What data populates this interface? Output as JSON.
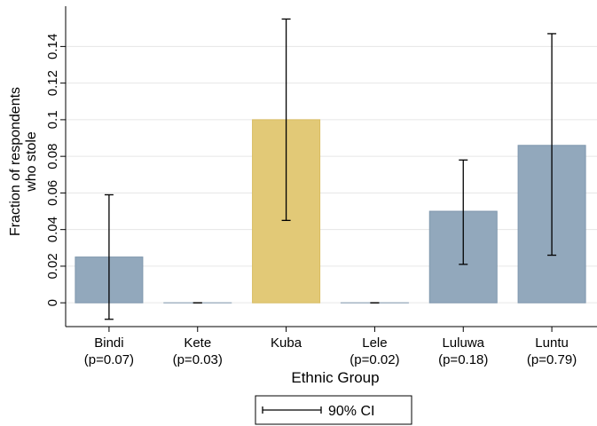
{
  "chart_data": {
    "type": "bar",
    "categories": [
      "Bindi",
      "Kete",
      "Kuba",
      "Lele",
      "Luluwa",
      "Luntu"
    ],
    "category_notes": [
      "(p=0.07)",
      "(p=0.03)",
      "",
      "(p=0.02)",
      "(p=0.18)",
      "(p=0.79)"
    ],
    "values": [
      0.025,
      0.0,
      0.1,
      0.0,
      0.05,
      0.086
    ],
    "ci_low": [
      -0.009,
      0.0,
      0.045,
      0.0,
      0.021,
      0.026
    ],
    "ci_high": [
      0.059,
      0.0,
      0.155,
      0.0,
      0.078,
      0.147
    ],
    "highlight": "Kuba",
    "ylim": [
      -0.013,
      0.162
    ],
    "yticks": [
      0,
      0.02,
      0.04,
      0.06,
      0.08,
      0.1,
      0.12,
      0.14
    ],
    "ytick_labels": [
      "0",
      "0.02",
      "0.04",
      "0.06",
      "0.08",
      "0.1",
      "0.12",
      "0.14"
    ],
    "ylabel_line1": "Fraction of respondents",
    "ylabel_line2": "who stole",
    "xlabel": "Ethnic Group",
    "legend": {
      "label": "90% CI",
      "placement": "bottom-center"
    },
    "grid": true,
    "colors": {
      "bar": "#92A8BC",
      "highlight": "#E2C977",
      "grid": "#e6e6e6"
    }
  }
}
